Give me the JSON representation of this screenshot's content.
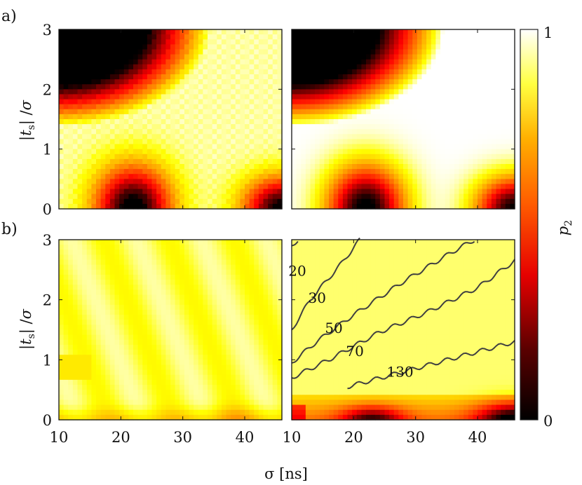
{
  "figure": {
    "panel_labels": [
      "a)",
      "b)"
    ],
    "xlabel": "σ [ns]",
    "ylabel": "|t_s| /σ",
    "colorbar_label": "p_2",
    "colorbar_ticks": [
      "0",
      "1"
    ],
    "colormap": "hot",
    "colors": {
      "black": "#000000",
      "red": "#e60000",
      "orange": "#ff8000",
      "yellow": "#ffff40",
      "white": "#ffffff",
      "contour": "#404040"
    }
  },
  "chart_data": [
    {
      "type": "heatmap",
      "panel": "a) left",
      "title": "",
      "xlim": [
        10,
        46
      ],
      "ylim": [
        0,
        3
      ],
      "xticks": [
        10,
        20,
        30,
        40
      ],
      "yticks": [
        0,
        1,
        2,
        3
      ],
      "ytick_labels": [
        "0",
        "1",
        "2",
        "3"
      ],
      "value_range": [
        0,
        1
      ],
      "description_of_values": "p2 high (yellow/white) except dark lobes at bottom near sigma≈22 and sigma≈46, dark upper-left corner; slightly noisy"
    },
    {
      "type": "heatmap",
      "panel": "a) right",
      "title": "",
      "xlim": [
        10,
        46
      ],
      "ylim": [
        0,
        3
      ],
      "xticks": [
        10,
        20,
        30,
        40
      ],
      "yticks": [
        0,
        1,
        2,
        3
      ],
      "value_range": [
        0,
        1
      ],
      "description_of_values": "smooth version of left panel: dark lobes at bottom near sigma≈22 and sigma≈46, dark upper-left corner"
    },
    {
      "type": "heatmap",
      "panel": "b) left",
      "title": "",
      "xlim": [
        10,
        46
      ],
      "ylim": [
        0,
        3
      ],
      "xticks": [
        10,
        20,
        30,
        40
      ],
      "xtick_labels": [
        "10",
        "20",
        "30",
        "40"
      ],
      "yticks": [
        0,
        1,
        2,
        3
      ],
      "ytick_labels": [
        "0",
        "1",
        "2",
        "3"
      ],
      "value_range": [
        0,
        1
      ],
      "description_of_values": "mostly light yellow (p2≈0.85-1), slight orange near bottom"
    },
    {
      "type": "heatmap",
      "panel": "b) right",
      "title": "",
      "xlim": [
        10,
        46
      ],
      "ylim": [
        0,
        3
      ],
      "xticks": [
        10,
        20,
        30,
        40
      ],
      "xtick_labels": [
        "10",
        "20",
        "30",
        "40"
      ],
      "yticks": [
        0,
        1,
        2,
        3
      ],
      "value_range": [
        0,
        1
      ],
      "contour_labels": [
        "20",
        "30",
        "50",
        "70",
        "130"
      ],
      "contours": [
        {
          "label": "20",
          "points": [
            [
              10,
              2.9
            ],
            [
              11,
              3.0
            ]
          ]
        },
        {
          "label": "30",
          "points": [
            [
              10,
              1.5
            ],
            [
              13,
              2.0
            ],
            [
              18,
              2.6
            ],
            [
              21,
              3.0
            ]
          ]
        },
        {
          "label": "50",
          "points": [
            [
              10,
              0.95
            ],
            [
              14,
              1.3
            ],
            [
              20,
              1.75
            ],
            [
              28,
              2.3
            ],
            [
              36,
              2.8
            ],
            [
              39.5,
              3.0
            ]
          ]
        },
        {
          "label": "70",
          "points": [
            [
              10,
              0.7
            ],
            [
              16,
              1.0
            ],
            [
              24,
              1.45
            ],
            [
              32,
              1.8
            ],
            [
              40,
              2.2
            ],
            [
              46,
              2.65
            ]
          ]
        },
        {
          "label": "130",
          "points": [
            [
              19,
              0.55
            ],
            [
              28,
              0.8
            ],
            [
              37,
              1.05
            ],
            [
              46,
              1.3
            ]
          ]
        }
      ],
      "description_of_values": "mostly light yellow; orange/dark band near t_s=0 with dark lobes near sigma≈22 and sigma≈46; contour lines overlaid"
    }
  ]
}
